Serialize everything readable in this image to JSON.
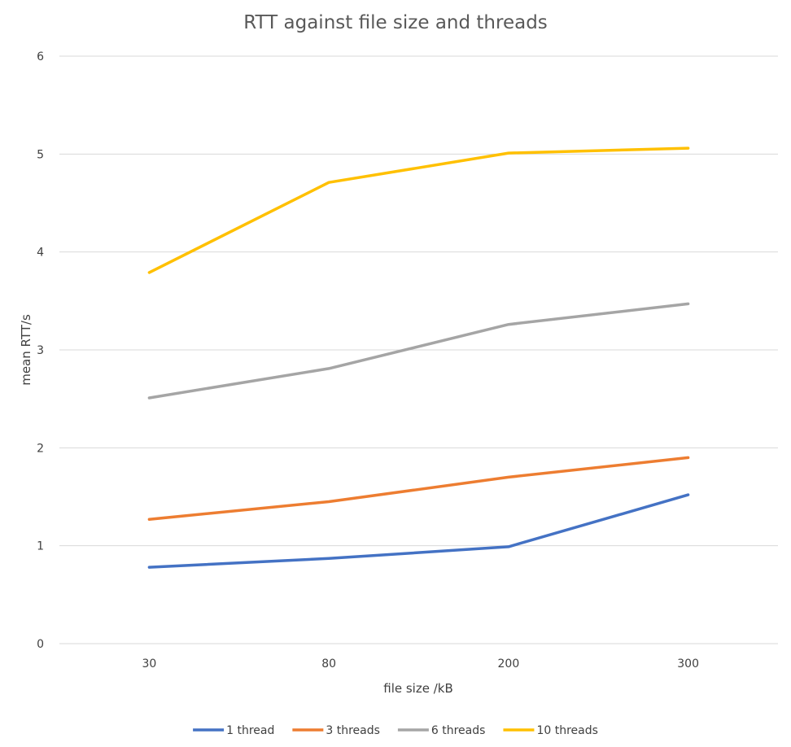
{
  "chart_data": {
    "type": "line",
    "title": "RTT against file size and threads",
    "xlabel": "file size /kB",
    "ylabel": "mean RTT/s",
    "categories": [
      "30",
      "80",
      "200",
      "300"
    ],
    "ylim": [
      0,
      6
    ],
    "yticks": [
      "0",
      "1",
      "2",
      "3",
      "4",
      "5",
      "6"
    ],
    "grid": true,
    "legend_position": "bottom",
    "series": [
      {
        "name": "1 thread",
        "color": "#4472C4",
        "values": [
          0.78,
          0.87,
          0.99,
          1.52
        ]
      },
      {
        "name": "3 threads",
        "color": "#ED7D31",
        "values": [
          1.27,
          1.45,
          1.7,
          1.9
        ]
      },
      {
        "name": "6 threads",
        "color": "#A5A5A5",
        "values": [
          2.51,
          2.81,
          3.26,
          3.47
        ]
      },
      {
        "name": "10 threads",
        "color": "#FFC000",
        "values": [
          3.79,
          4.71,
          5.01,
          5.06
        ]
      }
    ]
  }
}
